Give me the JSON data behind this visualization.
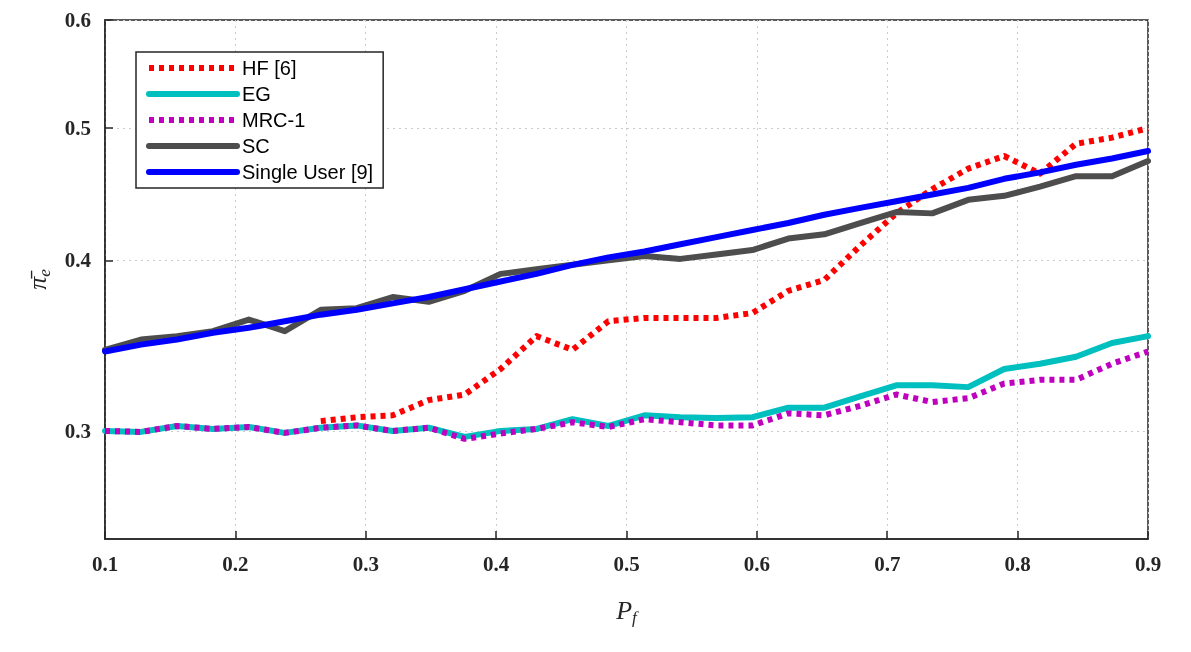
{
  "chart_data": {
    "type": "line",
    "xlabel": "P$_{f}$",
    "ylabel": "π̄$_{e}$",
    "x": [
      0.1,
      0.1276,
      0.1552,
      0.1828,
      0.2103,
      0.2379,
      0.2655,
      0.2931,
      0.3207,
      0.3483,
      0.3759,
      0.4034,
      0.431,
      0.4586,
      0.4862,
      0.5138,
      0.5414,
      0.569,
      0.5966,
      0.6241,
      0.6517,
      0.6793,
      0.7069,
      0.7345,
      0.7621,
      0.7897,
      0.8172,
      0.8448,
      0.8724,
      0.9
    ],
    "series": [
      {
        "name": "HF [6]",
        "color": "#ff0000",
        "line_style": "dotted",
        "values": [
          null,
          null,
          null,
          null,
          null,
          null,
          0.305,
          0.307,
          0.308,
          0.316,
          0.319,
          0.333,
          0.352,
          0.344,
          0.361,
          0.363,
          0.363,
          0.363,
          0.366,
          0.38,
          0.387,
          0.41,
          0.433,
          0.451,
          0.467,
          0.477,
          0.463,
          0.487,
          0.492,
          0.5
        ]
      },
      {
        "name": "EG",
        "color": "#00bfbf",
        "line_style": "solid",
        "values": [
          0.3,
          0.2995,
          0.3025,
          0.301,
          0.302,
          0.299,
          0.3016,
          0.3028,
          0.3,
          0.3016,
          0.297,
          0.3,
          0.301,
          0.306,
          0.3025,
          0.308,
          0.307,
          0.3066,
          0.307,
          0.312,
          0.312,
          0.318,
          0.324,
          0.324,
          0.323,
          0.333,
          0.336,
          0.34,
          0.348,
          0.352
        ]
      },
      {
        "name": "MRC-1",
        "color": "#bf00bf",
        "line_style": "dotted",
        "values": [
          0.3,
          0.2995,
          0.3025,
          0.301,
          0.302,
          0.299,
          0.3016,
          0.3028,
          0.3,
          0.3016,
          0.296,
          0.2987,
          0.301,
          0.3044,
          0.302,
          0.306,
          0.3044,
          0.3028,
          0.3028,
          0.309,
          0.308,
          0.313,
          0.319,
          0.315,
          0.317,
          0.325,
          0.327,
          0.327,
          0.336,
          0.343
        ]
      },
      {
        "name": "SC",
        "color": "#4d4d4d",
        "line_style": "solid",
        "values": [
          0.344,
          0.35,
          0.352,
          0.355,
          0.362,
          0.355,
          0.368,
          0.369,
          0.376,
          0.373,
          0.38,
          0.391,
          0.394,
          0.397,
          0.4,
          0.403,
          0.401,
          0.404,
          0.407,
          0.415,
          0.418,
          0.426,
          0.434,
          0.433,
          0.443,
          0.446,
          0.453,
          0.461,
          0.461,
          0.473
        ]
      },
      {
        "name": "Single User [9]",
        "color": "#0000ff",
        "line_style": "solid",
        "values": [
          0.343,
          0.347,
          0.35,
          0.354,
          0.357,
          0.361,
          0.365,
          0.368,
          0.372,
          0.376,
          0.381,
          0.386,
          0.391,
          0.397,
          0.402,
          0.406,
          0.411,
          0.416,
          0.421,
          0.426,
          0.432,
          0.437,
          0.442,
          0.447,
          0.452,
          0.459,
          0.464,
          0.47,
          0.475,
          0.481
        ]
      }
    ],
    "xlim": [
      0.1,
      0.9
    ],
    "xticks": [
      0.1,
      0.2,
      0.3,
      0.4,
      0.5,
      0.6,
      0.7,
      0.8,
      0.9
    ],
    "ylim": [
      0.25,
      0.6
    ],
    "yticks": [
      0.3,
      0.4,
      0.5,
      0.6
    ],
    "log": "y",
    "grid": true,
    "legend": "top left",
    "marker": "none"
  }
}
